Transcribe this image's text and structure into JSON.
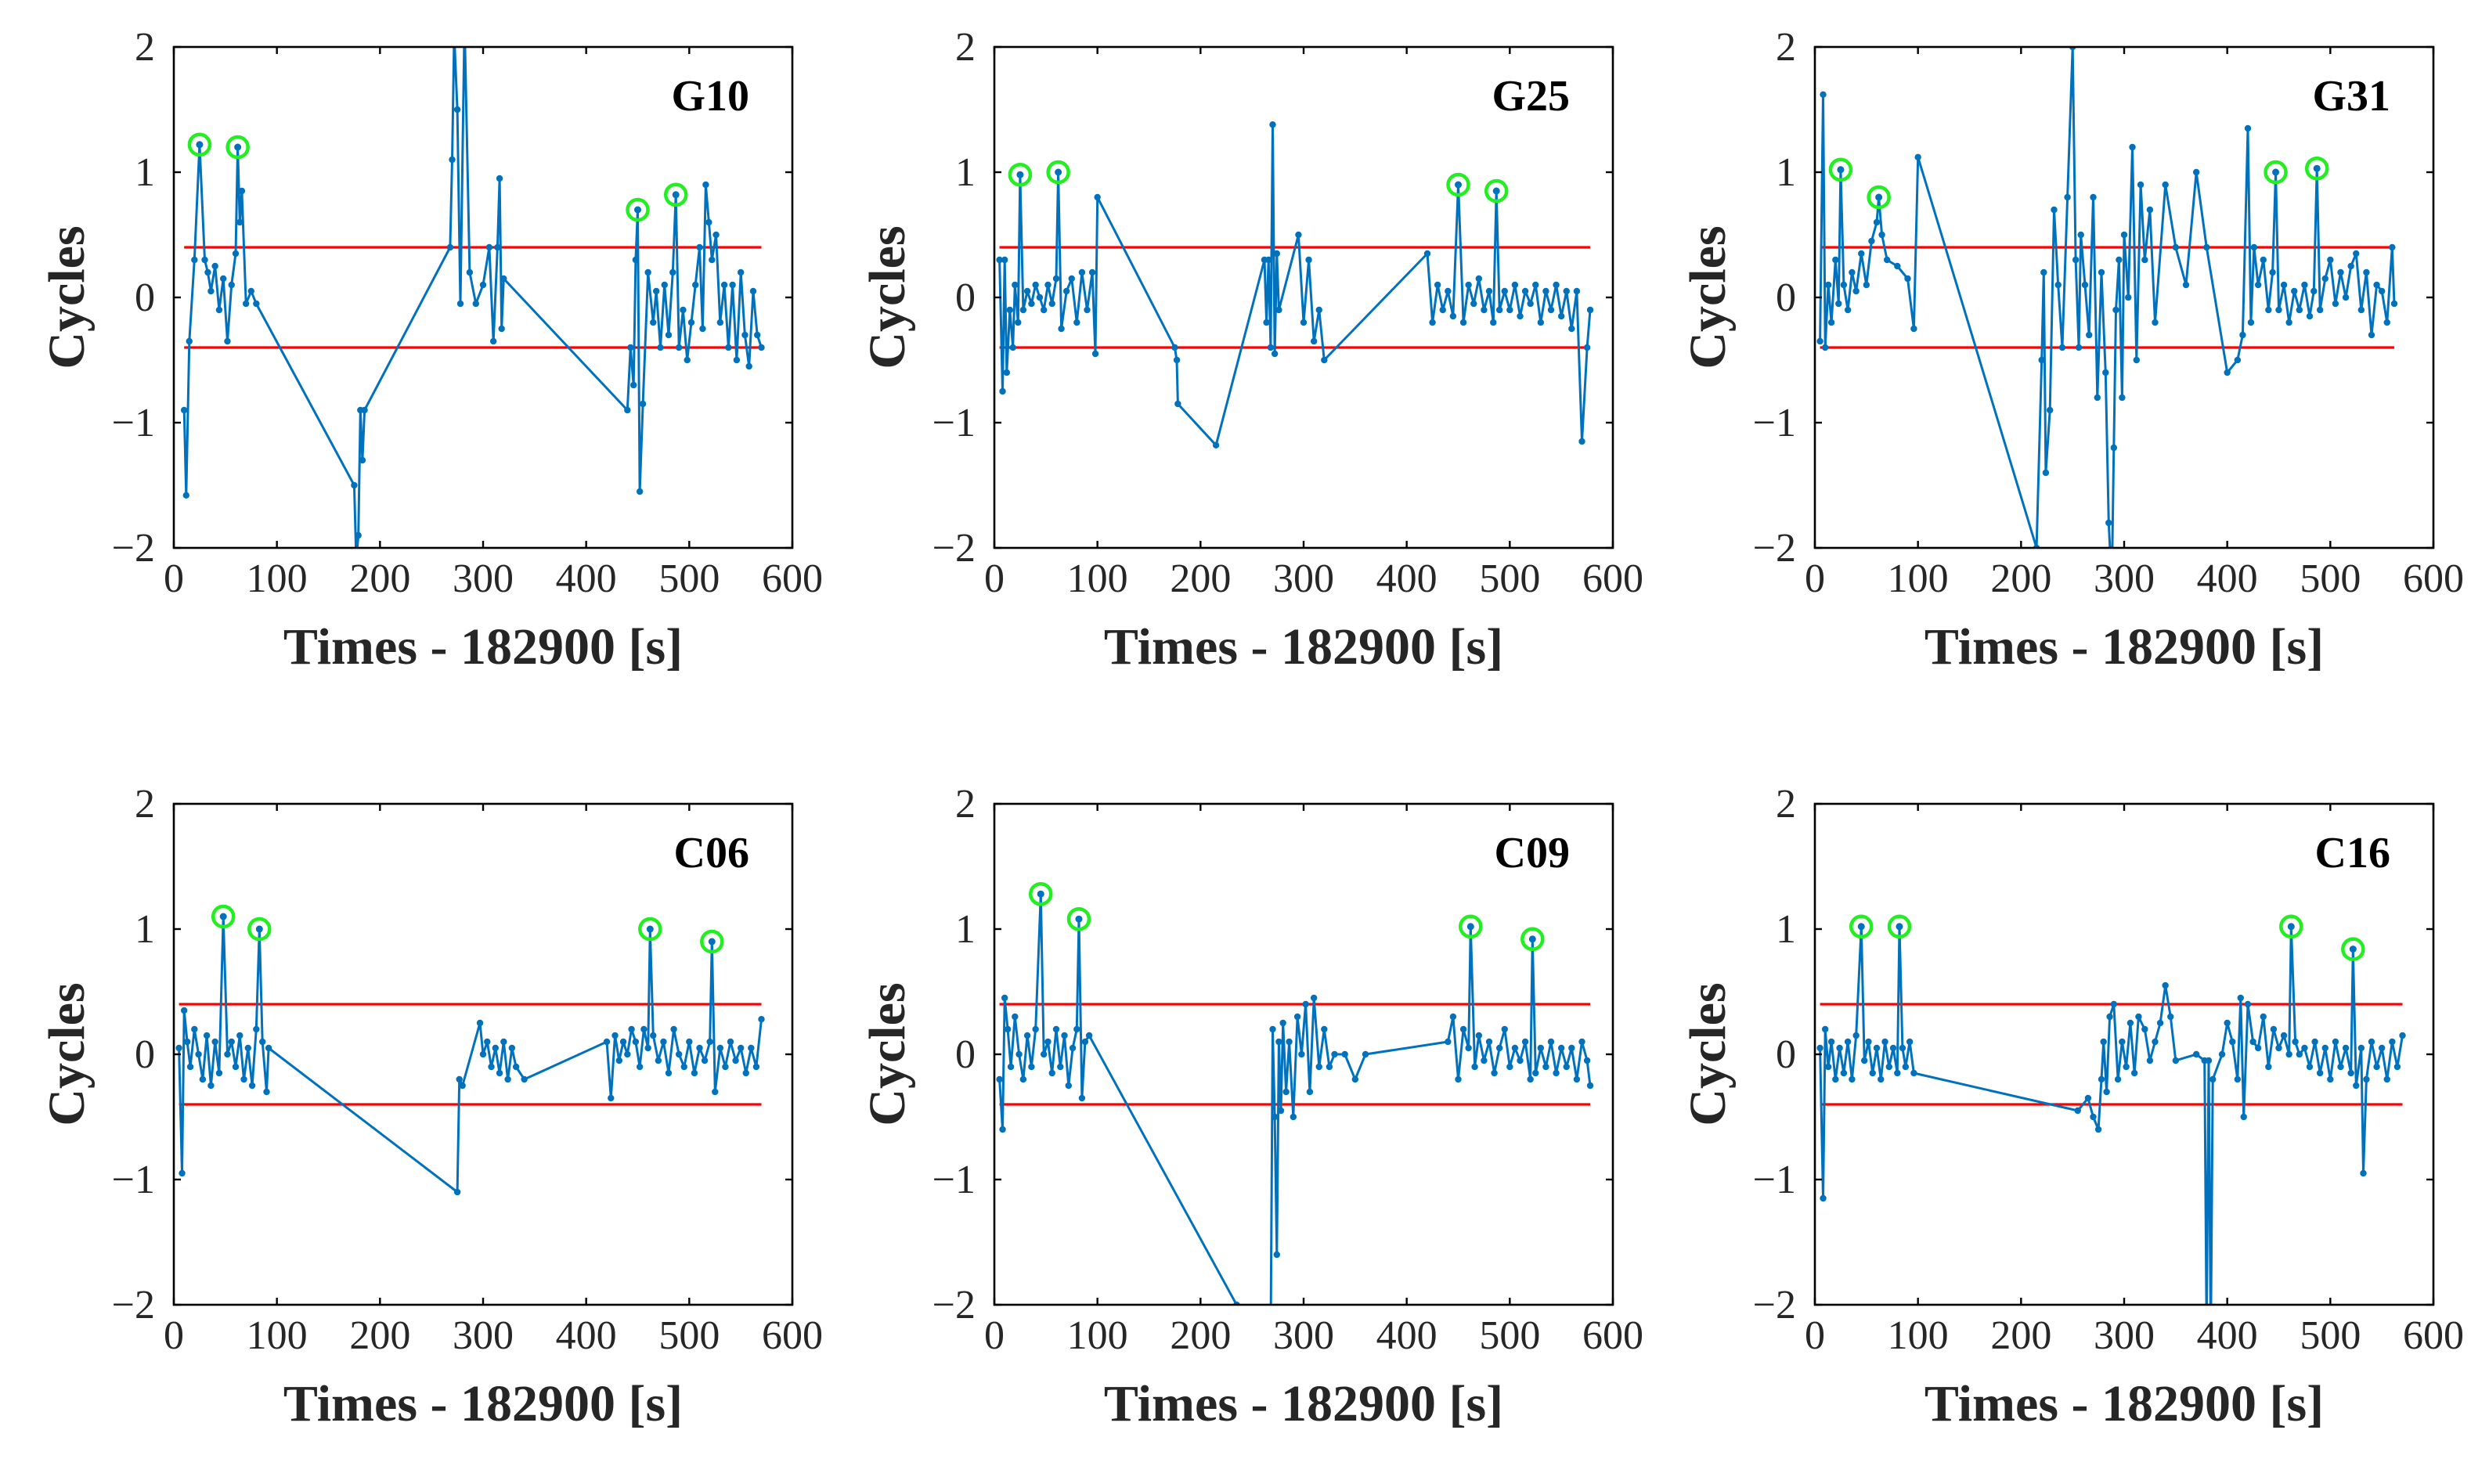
{
  "figure": {
    "series_color": "#0072BD",
    "threshold_color": "#FF0000",
    "highlight_color": "#22EE22"
  },
  "chart_data": [
    {
      "type": "line",
      "panel": "G10",
      "xlabel": "Times - 182900 [s]",
      "ylabel": "Cycles",
      "xlim": [
        0,
        600
      ],
      "ylim": [
        -2,
        2
      ],
      "xticks": [
        0,
        100,
        200,
        300,
        400,
        500,
        600
      ],
      "yticks": [
        -2,
        -1,
        0,
        1,
        2
      ],
      "thresholds": [
        0.4,
        -0.4
      ],
      "threshold_xrange": [
        10,
        570
      ],
      "highlighted_points": [
        [
          25,
          1.22
        ],
        [
          62,
          1.2
        ],
        [
          450,
          0.7
        ],
        [
          487,
          0.82
        ]
      ],
      "x": [
        10,
        12,
        15,
        20,
        25,
        30,
        33,
        36,
        40,
        44,
        48,
        52,
        56,
        60,
        62,
        64,
        66,
        70,
        75,
        80,
        175,
        177,
        179,
        181,
        183,
        185,
        268,
        270,
        272,
        275,
        278,
        282,
        287,
        293,
        300,
        306,
        310,
        314,
        316,
        318,
        320,
        440,
        443,
        446,
        448,
        450,
        452,
        455,
        460,
        465,
        468,
        472,
        476,
        480,
        484,
        487,
        490,
        494,
        498,
        502,
        506,
        510,
        513,
        516,
        519,
        522,
        526,
        530,
        534,
        538,
        542,
        546,
        550,
        554,
        558,
        562,
        566,
        570
      ],
      "y": [
        -0.9,
        -1.58,
        -0.35,
        0.3,
        1.22,
        0.3,
        0.2,
        0.05,
        0.25,
        -0.1,
        0.15,
        -0.35,
        0.1,
        0.35,
        1.2,
        0.6,
        0.85,
        -0.05,
        0.05,
        -0.05,
        -1.5,
        -2.1,
        -1.9,
        -0.9,
        -1.3,
        -0.9,
        0.4,
        1.1,
        2.1,
        1.5,
        -0.05,
        2.2,
        0.2,
        -0.05,
        0.1,
        0.4,
        -0.35,
        0.4,
        0.95,
        -0.25,
        0.15,
        -0.9,
        -0.4,
        -0.7,
        0.3,
        0.7,
        -1.55,
        -0.85,
        0.2,
        -0.2,
        0.05,
        -0.4,
        0.1,
        -0.3,
        0.2,
        0.82,
        -0.4,
        -0.1,
        -0.5,
        -0.2,
        0.1,
        0.4,
        -0.25,
        0.9,
        0.6,
        0.3,
        0.5,
        -0.2,
        0.1,
        -0.4,
        0.1,
        -0.5,
        0.2,
        -0.3,
        -0.55,
        0.05,
        -0.3,
        -0.4
      ]
    },
    {
      "type": "line",
      "panel": "G25",
      "xlabel": "Times - 182900 [s]",
      "ylabel": "Cycles",
      "xlim": [
        0,
        600
      ],
      "ylim": [
        -2,
        2
      ],
      "xticks": [
        0,
        100,
        200,
        300,
        400,
        500,
        600
      ],
      "yticks": [
        -2,
        -1,
        0,
        1,
        2
      ],
      "thresholds": [
        0.4,
        -0.4
      ],
      "threshold_xrange": [
        5,
        578
      ],
      "highlighted_points": [
        [
          25,
          0.98
        ],
        [
          62,
          1.0
        ],
        [
          450,
          0.9
        ],
        [
          487,
          0.85
        ]
      ],
      "x": [
        5,
        8,
        10,
        12,
        15,
        18,
        20,
        23,
        25,
        28,
        32,
        36,
        40,
        44,
        48,
        52,
        56,
        60,
        62,
        65,
        70,
        75,
        80,
        85,
        90,
        95,
        98,
        100,
        175,
        177,
        178,
        215,
        262,
        264,
        266,
        268,
        270,
        272,
        274,
        276,
        295,
        300,
        305,
        310,
        315,
        320,
        420,
        425,
        430,
        435,
        440,
        445,
        450,
        455,
        460,
        465,
        470,
        475,
        480,
        484,
        487,
        490,
        495,
        500,
        505,
        510,
        515,
        520,
        525,
        530,
        535,
        540,
        545,
        550,
        555,
        560,
        565,
        570,
        575,
        578
      ],
      "y": [
        0.3,
        -0.75,
        0.3,
        -0.6,
        -0.1,
        -0.4,
        0.1,
        -0.2,
        0.98,
        -0.1,
        0.05,
        -0.05,
        0.1,
        0.0,
        -0.1,
        0.1,
        -0.05,
        0.15,
        1.0,
        -0.25,
        0.05,
        0.15,
        -0.2,
        0.2,
        -0.1,
        0.2,
        -0.45,
        0.8,
        -0.4,
        -0.5,
        -0.85,
        -1.18,
        0.3,
        -0.2,
        0.3,
        -0.4,
        1.38,
        -0.45,
        0.35,
        -0.1,
        0.5,
        -0.2,
        0.3,
        -0.35,
        -0.1,
        -0.5,
        0.35,
        -0.2,
        0.1,
        -0.1,
        0.05,
        -0.15,
        0.9,
        -0.2,
        0.1,
        -0.05,
        0.15,
        -0.1,
        0.05,
        -0.2,
        0.85,
        -0.1,
        0.05,
        -0.1,
        0.1,
        -0.15,
        0.05,
        -0.05,
        0.1,
        -0.2,
        0.05,
        -0.1,
        0.1,
        -0.15,
        0.05,
        -0.25,
        0.05,
        -1.15,
        -0.4,
        -0.1
      ]
    },
    {
      "type": "line",
      "panel": "G31",
      "xlabel": "Times - 182900 [s]",
      "ylabel": "Cycles",
      "xlim": [
        0,
        600
      ],
      "ylim": [
        -2,
        2
      ],
      "xticks": [
        0,
        100,
        200,
        300,
        400,
        500,
        600
      ],
      "yticks": [
        -2,
        -1,
        0,
        1,
        2
      ],
      "thresholds": [
        0.4,
        -0.4
      ],
      "threshold_xrange": [
        5,
        562
      ],
      "highlighted_points": [
        [
          25,
          1.02
        ],
        [
          62,
          0.8
        ],
        [
          447,
          1.0
        ],
        [
          487,
          1.03
        ]
      ],
      "x": [
        5,
        8,
        10,
        13,
        16,
        20,
        23,
        25,
        28,
        32,
        36,
        40,
        45,
        50,
        55,
        60,
        62,
        65,
        70,
        80,
        90,
        96,
        100,
        215,
        220,
        222,
        224,
        228,
        232,
        236,
        240,
        245,
        250,
        253,
        256,
        258,
        262,
        266,
        270,
        274,
        278,
        282,
        285,
        288,
        290,
        292,
        295,
        298,
        300,
        304,
        308,
        312,
        316,
        320,
        325,
        330,
        340,
        350,
        360,
        370,
        380,
        400,
        410,
        415,
        420,
        423,
        426,
        430,
        435,
        440,
        444,
        447,
        450,
        455,
        460,
        465,
        470,
        475,
        480,
        484,
        487,
        490,
        495,
        500,
        505,
        510,
        515,
        520,
        525,
        530,
        535,
        540,
        545,
        550,
        555,
        560,
        562
      ],
      "y": [
        -0.35,
        1.62,
        -0.4,
        0.1,
        -0.2,
        0.3,
        -0.05,
        1.02,
        0.1,
        -0.1,
        0.2,
        0.05,
        0.35,
        0.1,
        0.45,
        0.6,
        0.8,
        0.5,
        0.3,
        0.25,
        0.15,
        -0.25,
        1.12,
        -2.0,
        -0.5,
        0.2,
        -1.4,
        -0.9,
        0.7,
        0.1,
        -0.4,
        0.8,
        2.0,
        0.3,
        -0.4,
        0.5,
        0.1,
        -0.3,
        0.8,
        -0.8,
        0.2,
        -0.6,
        -1.8,
        -2.3,
        -1.2,
        -0.1,
        0.3,
        -0.8,
        0.5,
        0.0,
        1.2,
        -0.5,
        0.9,
        0.3,
        0.7,
        -0.2,
        0.9,
        0.4,
        0.1,
        1.0,
        0.4,
        -0.6,
        -0.5,
        -0.3,
        1.35,
        -0.2,
        0.4,
        0.1,
        0.3,
        -0.1,
        0.2,
        1.0,
        -0.1,
        0.1,
        -0.2,
        0.05,
        -0.1,
        0.1,
        -0.15,
        0.05,
        1.03,
        -0.1,
        0.15,
        0.3,
        -0.05,
        0.2,
        0.0,
        0.25,
        0.35,
        -0.1,
        0.2,
        -0.3,
        0.1,
        0.05,
        -0.2,
        0.4,
        -0.05
      ]
    },
    {
      "type": "line",
      "panel": "C06",
      "xlabel": "Times - 182900 [s]",
      "ylabel": "Cycles",
      "xlim": [
        0,
        600
      ],
      "ylim": [
        -2,
        2
      ],
      "xticks": [
        0,
        100,
        200,
        300,
        400,
        500,
        600
      ],
      "yticks": [
        -2,
        -1,
        0,
        1,
        2
      ],
      "thresholds": [
        0.4,
        -0.4
      ],
      "threshold_xrange": [
        5,
        570
      ],
      "highlighted_points": [
        [
          48,
          1.1
        ],
        [
          83,
          1.0
        ],
        [
          462,
          1.0
        ],
        [
          522,
          0.9
        ]
      ],
      "x": [
        5,
        8,
        10,
        13,
        16,
        20,
        24,
        28,
        32,
        36,
        40,
        44,
        48,
        52,
        56,
        60,
        64,
        68,
        72,
        76,
        80,
        83,
        86,
        90,
        92,
        275,
        277,
        280,
        297,
        300,
        304,
        308,
        312,
        316,
        320,
        324,
        328,
        332,
        340,
        420,
        424,
        428,
        432,
        436,
        440,
        444,
        448,
        452,
        456,
        460,
        462,
        465,
        470,
        475,
        480,
        485,
        490,
        495,
        500,
        505,
        510,
        515,
        520,
        522,
        525,
        530,
        535,
        540,
        545,
        550,
        555,
        560,
        565,
        570
      ],
      "y": [
        0.05,
        -0.95,
        0.35,
        0.1,
        -0.1,
        0.2,
        0.0,
        -0.2,
        0.15,
        -0.25,
        0.1,
        -0.15,
        1.1,
        0.0,
        0.1,
        -0.1,
        0.15,
        -0.2,
        0.05,
        -0.25,
        0.2,
        1.0,
        0.1,
        -0.3,
        0.05,
        -1.1,
        -0.2,
        -0.25,
        0.25,
        0.0,
        0.1,
        -0.1,
        0.05,
        -0.15,
        0.1,
        -0.2,
        0.05,
        -0.1,
        -0.2,
        0.1,
        -0.35,
        0.15,
        -0.05,
        0.1,
        0.0,
        0.2,
        0.1,
        -0.1,
        0.2,
        0.05,
        1.0,
        0.15,
        -0.05,
        0.1,
        -0.15,
        0.2,
        0.0,
        -0.1,
        0.1,
        -0.15,
        0.05,
        -0.05,
        0.1,
        0.9,
        -0.3,
        0.05,
        -0.1,
        0.1,
        -0.05,
        0.05,
        -0.15,
        0.05,
        -0.1,
        0.28
      ]
    },
    {
      "type": "line",
      "panel": "C09",
      "xlabel": "Times - 182900 [s]",
      "ylabel": "Cycles",
      "xlim": [
        0,
        600
      ],
      "ylim": [
        -2,
        2
      ],
      "xticks": [
        0,
        100,
        200,
        300,
        400,
        500,
        600
      ],
      "yticks": [
        -2,
        -1,
        0,
        1,
        2
      ],
      "thresholds": [
        0.4,
        -0.4
      ],
      "threshold_xrange": [
        5,
        578
      ],
      "highlighted_points": [
        [
          45,
          1.28
        ],
        [
          82,
          1.08
        ],
        [
          462,
          1.02
        ],
        [
          522,
          0.92
        ]
      ],
      "x": [
        5,
        8,
        10,
        13,
        16,
        20,
        24,
        28,
        32,
        36,
        40,
        45,
        48,
        52,
        56,
        60,
        64,
        68,
        72,
        76,
        80,
        82,
        85,
        88,
        92,
        235,
        268,
        270,
        272,
        274,
        276,
        278,
        280,
        283,
        286,
        290,
        294,
        298,
        302,
        306,
        310,
        315,
        320,
        325,
        330,
        340,
        350,
        360,
        440,
        445,
        450,
        455,
        460,
        462,
        466,
        470,
        475,
        480,
        485,
        490,
        495,
        500,
        505,
        510,
        515,
        520,
        522,
        525,
        530,
        535,
        540,
        545,
        550,
        555,
        560,
        565,
        570,
        575,
        578
      ],
      "y": [
        -0.2,
        -0.6,
        0.45,
        0.2,
        -0.1,
        0.3,
        0.0,
        -0.2,
        0.15,
        -0.1,
        0.2,
        1.28,
        0.0,
        0.1,
        -0.15,
        0.2,
        -0.1,
        0.15,
        -0.25,
        0.05,
        0.2,
        1.08,
        -0.35,
        0.1,
        0.15,
        -2.0,
        -2.3,
        0.2,
        -0.5,
        -1.6,
        0.1,
        -0.45,
        0.25,
        -0.3,
        0.1,
        -0.5,
        0.3,
        0.0,
        0.4,
        -0.3,
        0.45,
        -0.1,
        0.2,
        -0.1,
        0.0,
        0.0,
        -0.2,
        0.0,
        0.1,
        0.3,
        -0.2,
        0.2,
        0.05,
        1.02,
        -0.1,
        0.15,
        -0.05,
        0.1,
        -0.15,
        0.05,
        0.2,
        -0.1,
        0.05,
        -0.05,
        0.1,
        -0.2,
        0.92,
        -0.15,
        0.05,
        -0.1,
        0.1,
        -0.15,
        0.05,
        -0.1,
        0.05,
        -0.2,
        0.1,
        -0.05,
        -0.25
      ]
    },
    {
      "type": "line",
      "panel": "C16",
      "xlabel": "Times - 182900 [s]",
      "ylabel": "Cycles",
      "xlim": [
        0,
        600
      ],
      "ylim": [
        -2,
        2
      ],
      "xticks": [
        0,
        100,
        200,
        300,
        400,
        500,
        600
      ],
      "yticks": [
        -2,
        -1,
        0,
        1,
        2
      ],
      "thresholds": [
        0.4,
        -0.4
      ],
      "threshold_xrange": [
        5,
        570
      ],
      "highlighted_points": [
        [
          45,
          1.02
        ],
        [
          82,
          1.02
        ],
        [
          462,
          1.02
        ],
        [
          522,
          0.84
        ]
      ],
      "x": [
        5,
        8,
        10,
        13,
        16,
        20,
        24,
        28,
        32,
        36,
        40,
        45,
        48,
        52,
        56,
        60,
        64,
        68,
        72,
        76,
        80,
        82,
        85,
        88,
        92,
        96,
        255,
        265,
        270,
        275,
        278,
        280,
        283,
        286,
        290,
        294,
        298,
        302,
        306,
        310,
        314,
        320,
        325,
        330,
        335,
        340,
        345,
        350,
        370,
        378,
        380,
        382,
        384,
        386,
        395,
        400,
        405,
        410,
        413,
        416,
        420,
        425,
        430,
        435,
        440,
        445,
        450,
        455,
        460,
        462,
        466,
        470,
        475,
        480,
        485,
        490,
        495,
        500,
        505,
        510,
        515,
        520,
        522,
        525,
        530,
        532,
        535,
        540,
        545,
        550,
        555,
        560,
        565,
        570
      ],
      "y": [
        0.05,
        -1.15,
        0.2,
        -0.1,
        0.1,
        -0.2,
        0.05,
        -0.15,
        0.1,
        -0.2,
        0.15,
        1.02,
        -0.05,
        0.1,
        -0.15,
        0.05,
        -0.2,
        0.1,
        -0.1,
        0.05,
        -0.15,
        1.02,
        0.05,
        -0.1,
        0.1,
        -0.15,
        -0.45,
        -0.35,
        -0.5,
        -0.6,
        -0.2,
        0.1,
        -0.3,
        0.3,
        0.4,
        -0.2,
        0.1,
        -0.1,
        0.25,
        -0.15,
        0.3,
        0.2,
        -0.05,
        0.1,
        0.25,
        0.55,
        0.3,
        -0.05,
        0.0,
        -0.05,
        -2.2,
        -0.05,
        -2.3,
        -0.2,
        0.0,
        0.25,
        0.1,
        -0.2,
        0.45,
        -0.5,
        0.4,
        0.1,
        0.05,
        0.3,
        -0.1,
        0.2,
        0.05,
        0.15,
        0.0,
        1.02,
        0.1,
        0.0,
        0.05,
        -0.1,
        0.1,
        -0.15,
        0.05,
        -0.2,
        0.1,
        -0.1,
        0.05,
        -0.15,
        0.84,
        -0.25,
        0.05,
        -0.95,
        -0.2,
        0.1,
        -0.1,
        0.05,
        -0.2,
        0.1,
        -0.1,
        0.15
      ]
    }
  ]
}
